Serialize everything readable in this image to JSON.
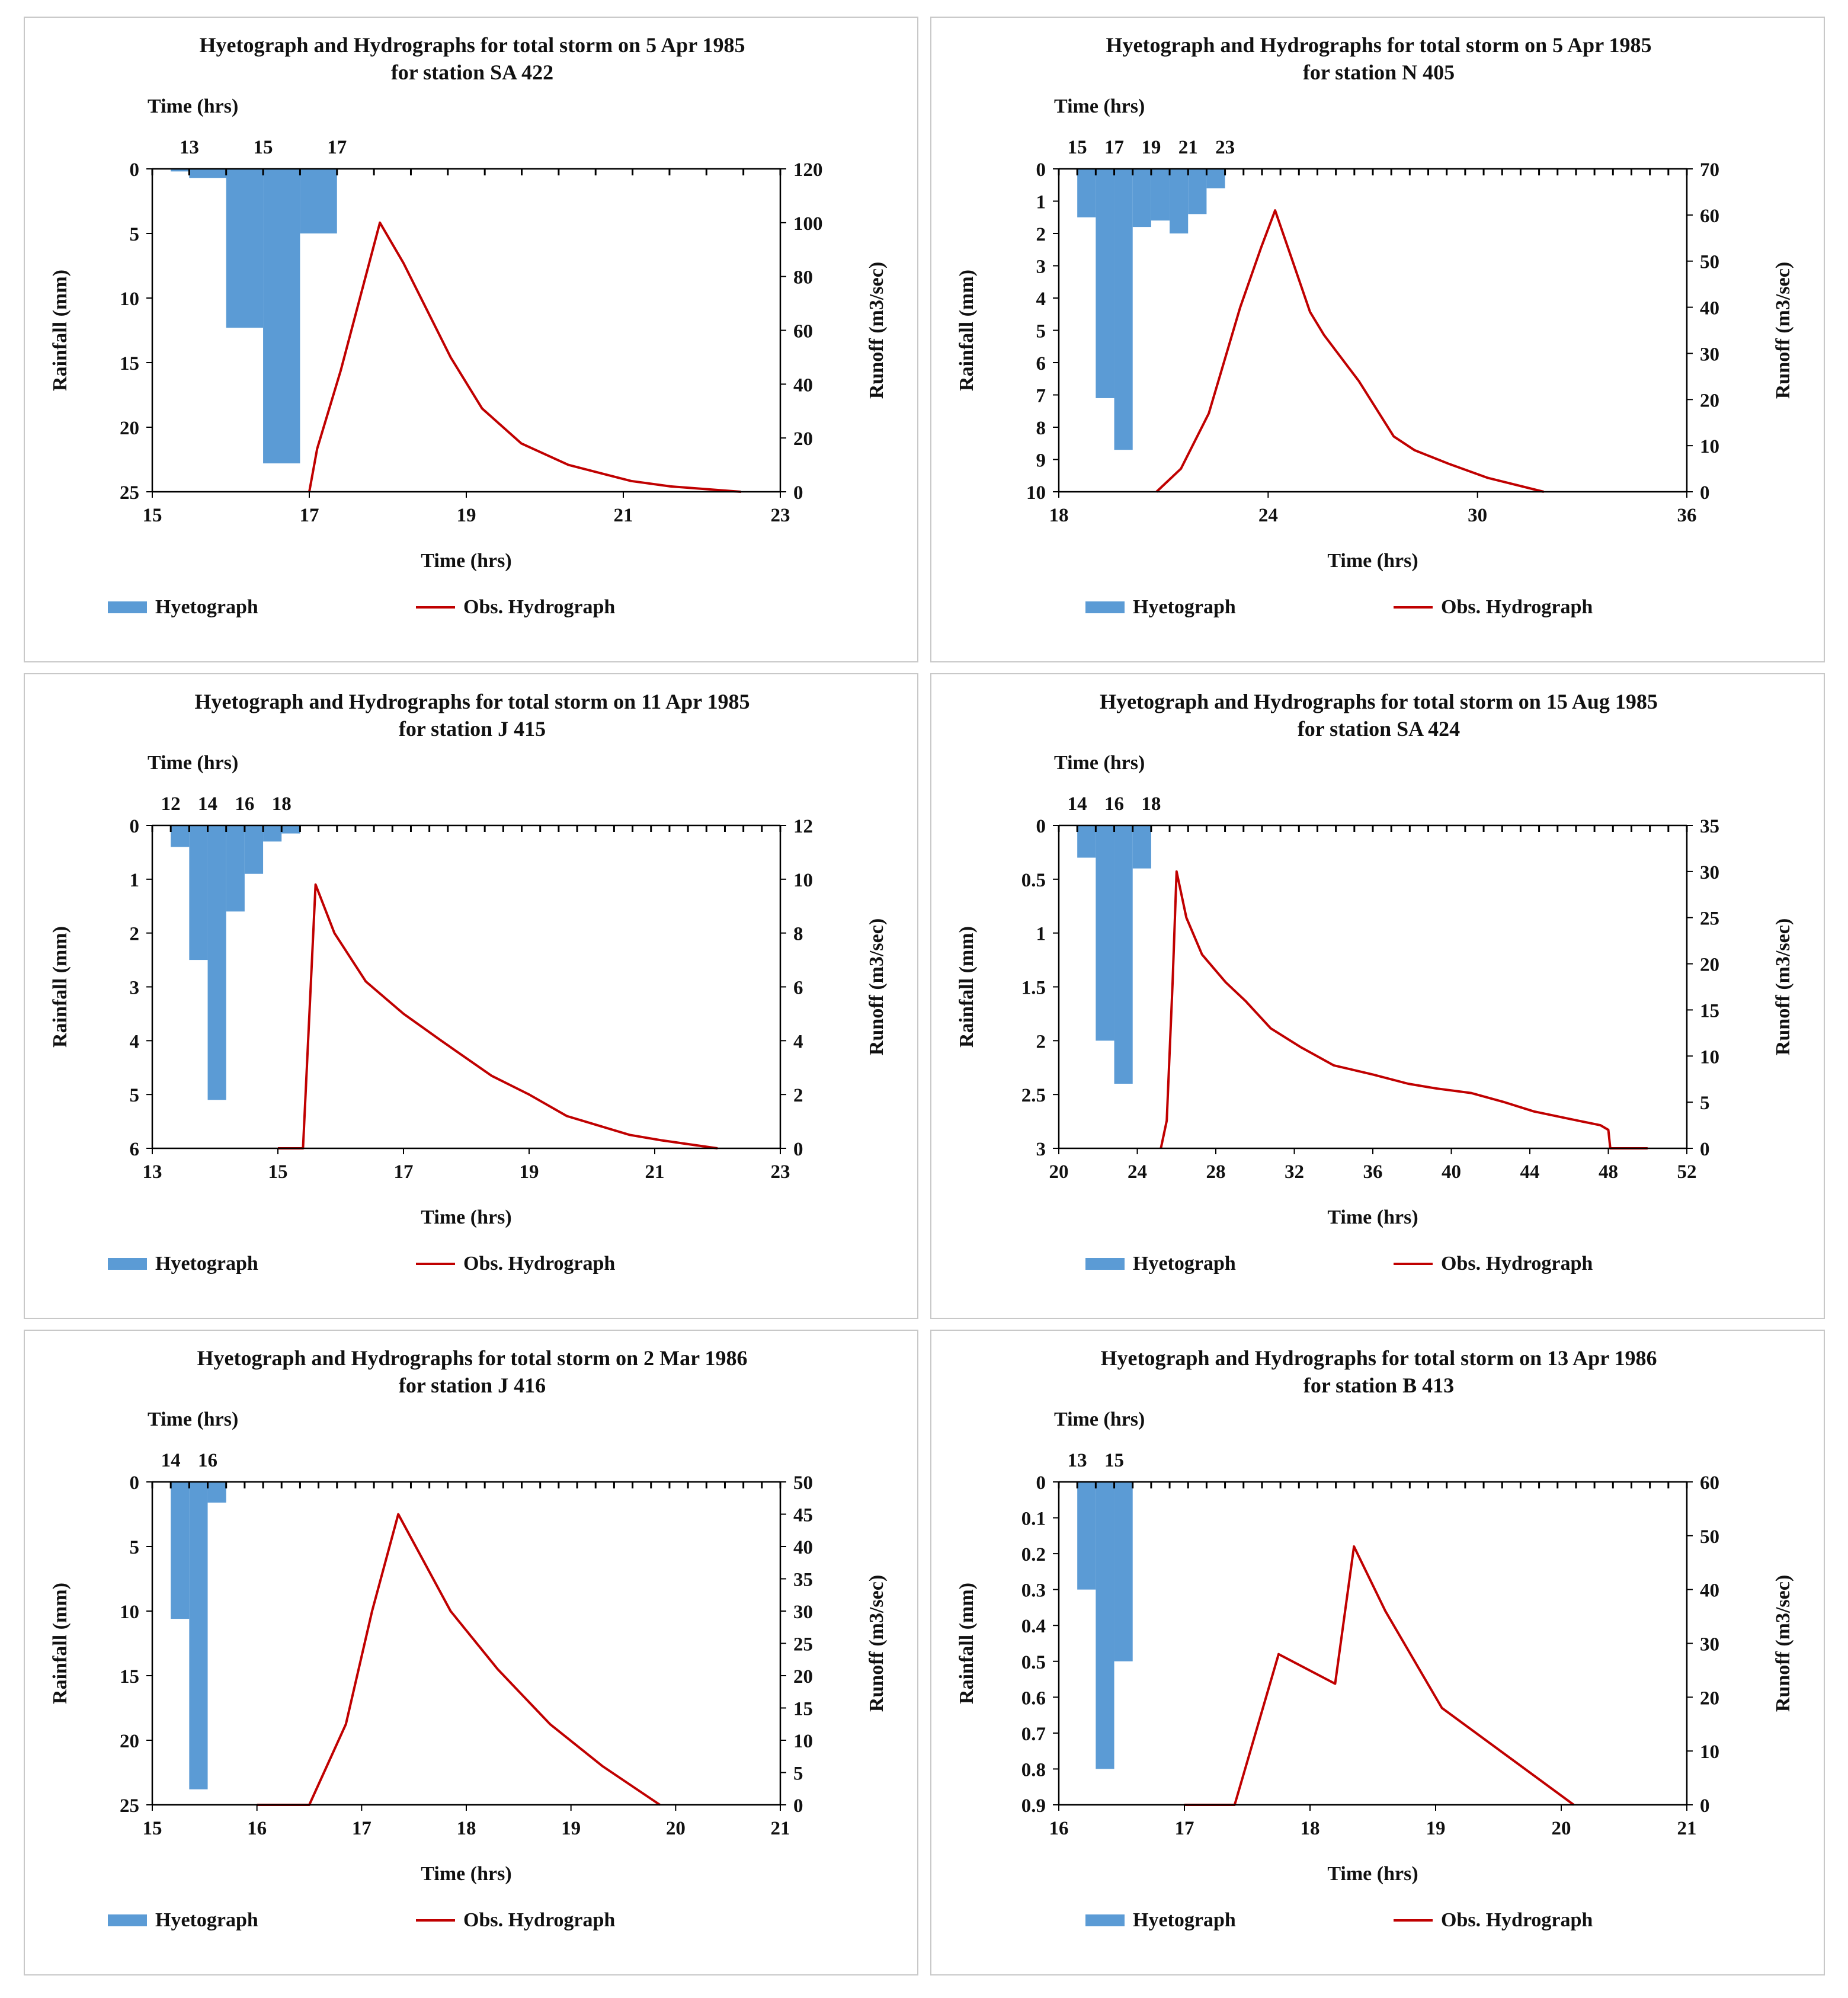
{
  "colors": {
    "hyetograph": "#5b9bd5",
    "hydrograph": "#c00000",
    "axis": "#000000"
  },
  "legend": {
    "hyetograph": "Hyetograph",
    "hydrograph": "Obs. Hydrograph"
  },
  "chart_data": [
    {
      "type": "bar+line",
      "title": "Hyetograph and Hydrographs for total storm on 5 Apr 1985",
      "subtitle": "for station SA 422",
      "top_axis": {
        "label": "Time (hrs)",
        "min": 12,
        "max": 29,
        "ticks": [
          13,
          15,
          17
        ]
      },
      "bottom_axis": {
        "label": "Time (hrs)",
        "min": 15,
        "max": 23,
        "ticks": [
          15,
          17,
          19,
          21,
          23
        ]
      },
      "left_axis": {
        "label": "Rainfall (mm)",
        "min": 0,
        "max": 25,
        "ticks": [
          0,
          5,
          10,
          15,
          20,
          25
        ],
        "inverted": true
      },
      "right_axis": {
        "label": "Runoff (m3/sec)",
        "min": 0,
        "max": 120,
        "ticks": [
          0,
          20,
          40,
          60,
          80,
          100,
          120
        ]
      },
      "hyetograph": [
        [
          12.5,
          0.2
        ],
        [
          13,
          0.7
        ],
        [
          14,
          12.3
        ],
        [
          15,
          22.8
        ],
        [
          16,
          5.0
        ]
      ],
      "hydrograph": [
        [
          17.0,
          0
        ],
        [
          17.1,
          16
        ],
        [
          17.4,
          45
        ],
        [
          17.9,
          100
        ],
        [
          18.2,
          85
        ],
        [
          18.8,
          50
        ],
        [
          19.2,
          31
        ],
        [
          19.7,
          18
        ],
        [
          20.3,
          10
        ],
        [
          21.1,
          4
        ],
        [
          21.6,
          2
        ],
        [
          22.5,
          0
        ]
      ]
    },
    {
      "type": "bar+line",
      "title": "Hyetograph and Hydrographs for total storm on 5 Apr 1985",
      "subtitle": "for station N 405",
      "top_axis": {
        "label": "Time (hrs)",
        "min": 14,
        "max": 48,
        "ticks": [
          15,
          17,
          19,
          21,
          23
        ]
      },
      "bottom_axis": {
        "label": "Time (hrs)",
        "min": 18,
        "max": 36,
        "ticks": [
          18,
          24,
          30,
          36
        ]
      },
      "left_axis": {
        "label": "Rainfall (mm)",
        "min": 0,
        "max": 10,
        "ticks": [
          0,
          1,
          2,
          3,
          4,
          5,
          6,
          7,
          8,
          9,
          10
        ],
        "inverted": true
      },
      "right_axis": {
        "label": "Runoff (m3/sec)",
        "min": 0,
        "max": 70,
        "ticks": [
          0,
          10,
          20,
          30,
          40,
          50,
          60,
          70
        ]
      },
      "hyetograph": [
        [
          15,
          1.5
        ],
        [
          16,
          7.1
        ],
        [
          17,
          8.7
        ],
        [
          18,
          1.8
        ],
        [
          19,
          1.6
        ],
        [
          20,
          2.0
        ],
        [
          21,
          1.4
        ],
        [
          22,
          0.6
        ]
      ],
      "hydrograph": [
        [
          20.8,
          0
        ],
        [
          21.5,
          5
        ],
        [
          22.3,
          17
        ],
        [
          23.2,
          40
        ],
        [
          23.8,
          53
        ],
        [
          24.2,
          61
        ],
        [
          24.7,
          50
        ],
        [
          25.2,
          39
        ],
        [
          25.6,
          34
        ],
        [
          26.6,
          24
        ],
        [
          27.6,
          12
        ],
        [
          28.2,
          9
        ],
        [
          29.2,
          6
        ],
        [
          30.3,
          3
        ],
        [
          31.9,
          0
        ]
      ]
    },
    {
      "type": "bar+line",
      "title": "Hyetograph and Hydrographs for total storm on 11 Apr 1985",
      "subtitle": "for station J 415",
      "top_axis": {
        "label": "Time (hrs)",
        "min": 11,
        "max": 45,
        "ticks": [
          12,
          14,
          16,
          18
        ]
      },
      "bottom_axis": {
        "label": "Time (hrs)",
        "min": 13,
        "max": 23,
        "ticks": [
          13,
          15,
          17,
          19,
          21,
          23
        ]
      },
      "left_axis": {
        "label": "Rainfall (mm)",
        "min": 0,
        "max": 6,
        "ticks": [
          0,
          1,
          2,
          3,
          4,
          5,
          6
        ],
        "inverted": true
      },
      "right_axis": {
        "label": "Runoff (m3/sec)",
        "min": 0,
        "max": 12,
        "ticks": [
          0,
          2,
          4,
          6,
          8,
          10,
          12
        ]
      },
      "hyetograph": [
        [
          12,
          0.4
        ],
        [
          13,
          2.5
        ],
        [
          14,
          5.1
        ],
        [
          15,
          1.6
        ],
        [
          16,
          0.9
        ],
        [
          17,
          0.3
        ],
        [
          18,
          0.15
        ]
      ],
      "hydrograph": [
        [
          15.0,
          0
        ],
        [
          15.4,
          0
        ],
        [
          15.6,
          9.8
        ],
        [
          15.9,
          8.0
        ],
        [
          16.4,
          6.2
        ],
        [
          17.0,
          5.0
        ],
        [
          17.6,
          4.0
        ],
        [
          18.4,
          2.7
        ],
        [
          19.0,
          2.0
        ],
        [
          19.6,
          1.2
        ],
        [
          20.6,
          0.5
        ],
        [
          21.1,
          0.3
        ],
        [
          22.0,
          0
        ]
      ]
    },
    {
      "type": "bar+line",
      "title": "Hyetograph and Hydrographs for total storm on 15 Aug 1985",
      "subtitle": "for station SA 424",
      "top_axis": {
        "label": "Time (hrs)",
        "min": 13,
        "max": 47,
        "ticks": [
          14,
          16,
          18
        ]
      },
      "bottom_axis": {
        "label": "Time (hrs)",
        "min": 20,
        "max": 52,
        "ticks": [
          20,
          24,
          28,
          32,
          36,
          40,
          44,
          48,
          52
        ]
      },
      "left_axis": {
        "label": "Rainfall (mm)",
        "min": 0,
        "max": 3,
        "ticks": [
          0,
          0.5,
          1,
          1.5,
          2,
          2.5,
          3
        ],
        "inverted": true
      },
      "right_axis": {
        "label": "Runoff (m3/sec)",
        "min": 0,
        "max": 35,
        "ticks": [
          0,
          5,
          10,
          15,
          20,
          25,
          30,
          35
        ]
      },
      "hyetograph": [
        [
          14,
          0.3
        ],
        [
          15,
          2.0
        ],
        [
          16,
          2.4
        ],
        [
          17,
          0.4
        ]
      ],
      "hydrograph": [
        [
          25.2,
          0
        ],
        [
          25.5,
          3
        ],
        [
          25.8,
          18
        ],
        [
          26.0,
          30
        ],
        [
          26.5,
          25
        ],
        [
          27.3,
          21
        ],
        [
          28.5,
          18
        ],
        [
          29.5,
          16
        ],
        [
          30.8,
          13
        ],
        [
          32.3,
          11
        ],
        [
          34.0,
          9
        ],
        [
          36.0,
          8
        ],
        [
          37.8,
          7
        ],
        [
          39.2,
          6.5
        ],
        [
          41.0,
          6
        ],
        [
          42.7,
          5
        ],
        [
          44.2,
          4
        ],
        [
          46.0,
          3.2
        ],
        [
          47.6,
          2.5
        ],
        [
          48.0,
          2
        ],
        [
          48.1,
          0
        ],
        [
          50.0,
          0
        ]
      ]
    },
    {
      "type": "bar+line",
      "title": "Hyetograph and Hydrographs for total storm on 2 Mar 1986",
      "subtitle": "for station J 416",
      "top_axis": {
        "label": "Time (hrs)",
        "min": 13,
        "max": 47,
        "ticks": [
          14,
          16
        ]
      },
      "bottom_axis": {
        "label": "Time (hrs)",
        "min": 15,
        "max": 21,
        "ticks": [
          15,
          16,
          17,
          18,
          19,
          20,
          21
        ]
      },
      "left_axis": {
        "label": "Rainfall (mm)",
        "min": 0,
        "max": 25,
        "ticks": [
          0,
          5,
          10,
          15,
          20,
          25
        ],
        "inverted": true
      },
      "right_axis": {
        "label": "Runoff (m3/sec)",
        "min": 0,
        "max": 50,
        "ticks": [
          0,
          5,
          10,
          15,
          20,
          25,
          30,
          35,
          40,
          45,
          50
        ]
      },
      "hyetograph": [
        [
          14,
          10.6
        ],
        [
          15,
          23.8
        ],
        [
          16,
          1.6
        ]
      ],
      "hydrograph": [
        [
          16.0,
          0
        ],
        [
          16.5,
          0
        ],
        [
          16.85,
          12.5
        ],
        [
          17.1,
          30
        ],
        [
          17.35,
          45
        ],
        [
          17.85,
          30
        ],
        [
          18.3,
          21
        ],
        [
          18.8,
          12.5
        ],
        [
          19.3,
          6
        ],
        [
          19.85,
          0
        ]
      ]
    },
    {
      "type": "bar+line",
      "title": "Hyetograph and Hydrographs for total storm on 13 Apr 1986",
      "subtitle": "for station B 413",
      "top_axis": {
        "label": "Time (hrs)",
        "min": 12,
        "max": 46,
        "ticks": [
          13,
          15
        ]
      },
      "bottom_axis": {
        "label": "Time (hrs)",
        "min": 16,
        "max": 21,
        "ticks": [
          16,
          17,
          18,
          19,
          20,
          21
        ]
      },
      "left_axis": {
        "label": "Rainfall (mm)",
        "min": 0,
        "max": 0.9,
        "ticks": [
          0,
          0.1,
          0.2,
          0.3,
          0.4,
          0.5,
          0.6,
          0.7,
          0.8,
          0.9
        ],
        "inverted": true
      },
      "right_axis": {
        "label": "Runoff (m3/sec)",
        "min": 0,
        "max": 60,
        "ticks": [
          0,
          10,
          20,
          30,
          40,
          50,
          60
        ]
      },
      "hyetograph": [
        [
          13,
          0.3
        ],
        [
          14,
          0.8
        ],
        [
          15,
          0.5
        ]
      ],
      "hydrograph": [
        [
          17.0,
          0
        ],
        [
          17.4,
          0
        ],
        [
          17.75,
          28
        ],
        [
          18.2,
          22.5
        ],
        [
          18.35,
          48
        ],
        [
          18.6,
          36
        ],
        [
          19.05,
          18
        ],
        [
          20.1,
          0
        ]
      ]
    }
  ]
}
